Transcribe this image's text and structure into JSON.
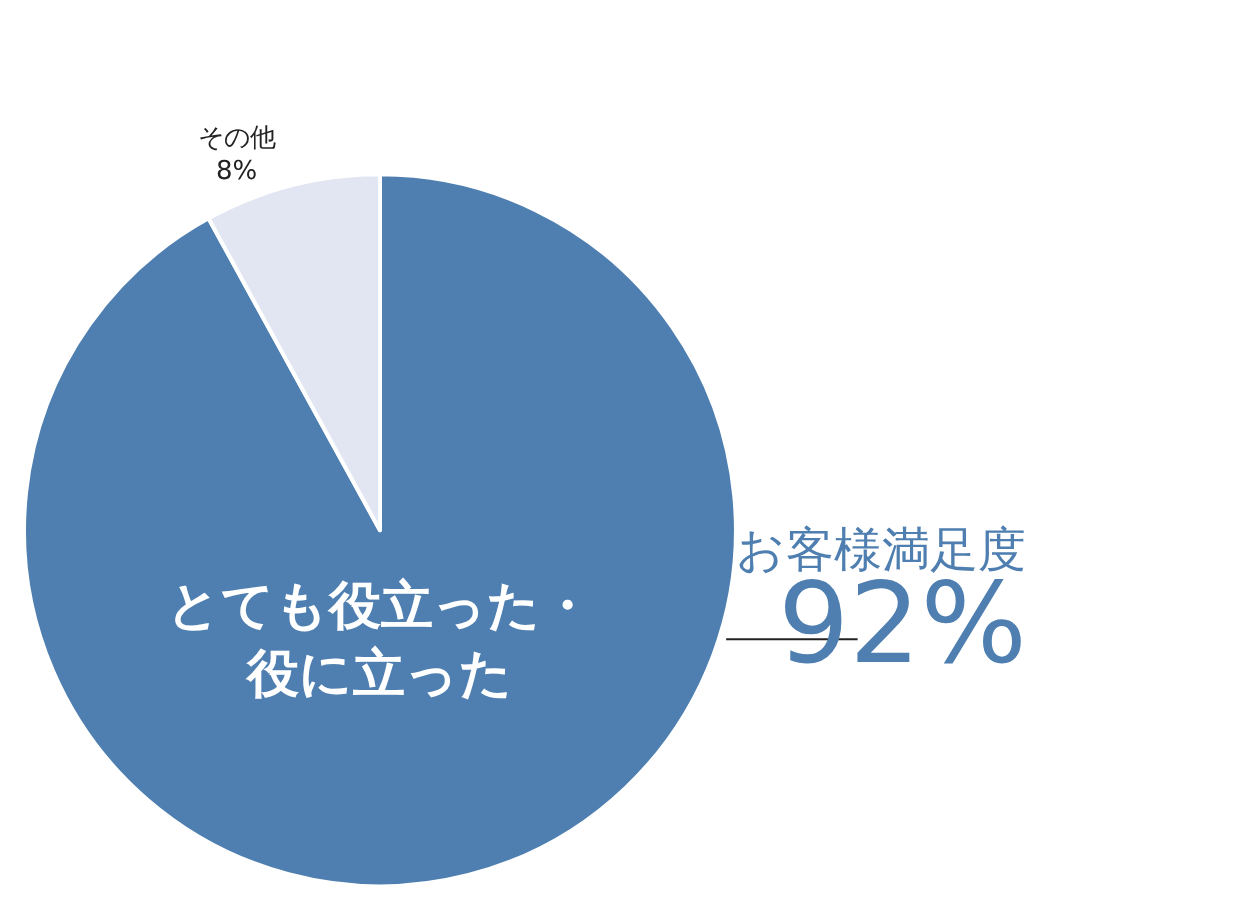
{
  "chart_data": {
    "type": "pie",
    "categories": [
      "とても役立った・役に立った",
      "その他"
    ],
    "values": [
      92,
      8
    ],
    "colors": [
      "#4e7fb0",
      "#e1e6f2"
    ],
    "value_labels": [
      null,
      "8%"
    ],
    "annotations": [
      "お客様満足度",
      "92%"
    ],
    "legend": false
  }
}
